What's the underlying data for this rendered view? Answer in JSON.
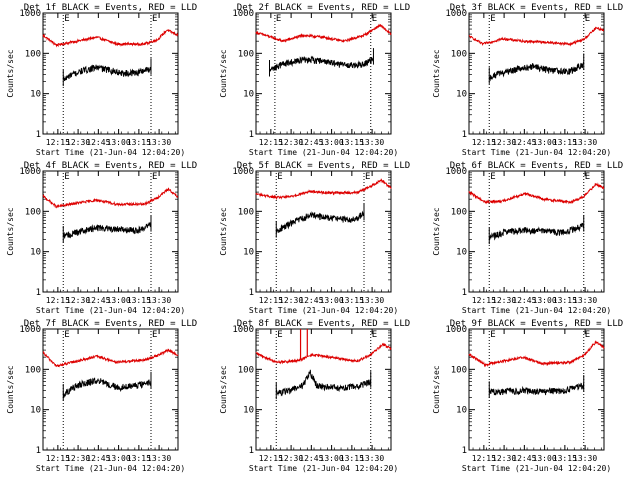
{
  "colors": {
    "events": "#000000",
    "lld": "#dd0000",
    "frame": "#000000",
    "marker": "#000000"
  },
  "chart_data": {
    "type": "line",
    "layout": "3x3 grid of small-multiple time-series panels",
    "shared": {
      "yscale": "log",
      "ylim": [
        1,
        1000
      ],
      "yticks": [
        "1",
        "10",
        "100",
        "1000"
      ],
      "ylabel": "Counts/sec",
      "xlim_minutes": [
        0,
        100
      ],
      "xtick_minutes": [
        11,
        26,
        41,
        56,
        71,
        86
      ],
      "xticks": [
        "12:15",
        "12:30",
        "12:45",
        "13:00",
        "13:15",
        "13:30"
      ],
      "xlabel": "Start Time (21-Jun-04 12:04:20)",
      "marker_label": "E",
      "legend": "BLACK = Events, RED = LLD"
    },
    "panels": [
      {
        "title": "Det 1f BLACK = Events, RED = LLD",
        "markers": [
          15,
          80
        ],
        "data_range": [
          15,
          80
        ],
        "events_keys": [
          [
            15,
            22
          ],
          [
            20,
            28
          ],
          [
            30,
            38
          ],
          [
            40,
            45
          ],
          [
            50,
            38
          ],
          [
            60,
            32
          ],
          [
            70,
            34
          ],
          [
            80,
            42
          ]
        ],
        "lld_keys": [
          [
            0,
            280
          ],
          [
            10,
            160
          ],
          [
            25,
            200
          ],
          [
            40,
            250
          ],
          [
            55,
            170
          ],
          [
            75,
            170
          ],
          [
            85,
            220
          ],
          [
            92,
            380
          ],
          [
            100,
            280
          ]
        ]
      },
      {
        "title": "Det 2f BLACK = Events, RED = LLD",
        "markers": [
          14,
          85
        ],
        "data_range": [
          10,
          87
        ],
        "events_keys": [
          [
            10,
            38
          ],
          [
            20,
            55
          ],
          [
            35,
            70
          ],
          [
            50,
            65
          ],
          [
            60,
            55
          ],
          [
            70,
            50
          ],
          [
            80,
            55
          ],
          [
            87,
            75
          ]
        ],
        "lld_keys": [
          [
            0,
            330
          ],
          [
            10,
            260
          ],
          [
            20,
            200
          ],
          [
            35,
            280
          ],
          [
            50,
            250
          ],
          [
            65,
            200
          ],
          [
            80,
            280
          ],
          [
            92,
            500
          ],
          [
            100,
            300
          ]
        ]
      },
      {
        "title": "Det 3f BLACK = Events, RED = LLD",
        "markers": [
          15,
          85
        ],
        "data_range": [
          15,
          85
        ],
        "events_keys": [
          [
            15,
            25
          ],
          [
            22,
            32
          ],
          [
            35,
            40
          ],
          [
            48,
            48
          ],
          [
            60,
            38
          ],
          [
            75,
            36
          ],
          [
            85,
            55
          ]
        ],
        "lld_keys": [
          [
            0,
            270
          ],
          [
            10,
            170
          ],
          [
            25,
            230
          ],
          [
            40,
            200
          ],
          [
            55,
            190
          ],
          [
            75,
            170
          ],
          [
            85,
            220
          ],
          [
            94,
            420
          ],
          [
            100,
            380
          ]
        ]
      },
      {
        "title": "Det 4f BLACK = Events, RED = LLD",
        "markers": [
          15,
          80
        ],
        "data_range": [
          15,
          80
        ],
        "events_keys": [
          [
            15,
            24
          ],
          [
            25,
            30
          ],
          [
            40,
            40
          ],
          [
            55,
            36
          ],
          [
            70,
            34
          ],
          [
            80,
            45
          ]
        ],
        "lld_keys": [
          [
            0,
            240
          ],
          [
            10,
            130
          ],
          [
            25,
            160
          ],
          [
            40,
            190
          ],
          [
            55,
            150
          ],
          [
            75,
            150
          ],
          [
            85,
            220
          ],
          [
            93,
            360
          ],
          [
            100,
            220
          ]
        ]
      },
      {
        "title": "Det 5f BLACK = Events, RED = LLD",
        "markers": [
          15,
          80
        ],
        "data_range": [
          15,
          80
        ],
        "events_keys": [
          [
            15,
            32
          ],
          [
            25,
            50
          ],
          [
            40,
            80
          ],
          [
            55,
            70
          ],
          [
            70,
            60
          ],
          [
            80,
            85
          ]
        ],
        "lld_keys": [
          [
            0,
            270
          ],
          [
            15,
            220
          ],
          [
            25,
            230
          ],
          [
            40,
            310
          ],
          [
            55,
            290
          ],
          [
            75,
            290
          ],
          [
            85,
            420
          ],
          [
            93,
            600
          ],
          [
            100,
            380
          ]
        ]
      },
      {
        "title": "Det 6f BLACK = Events, RED = LLD",
        "markers": [
          15,
          85
        ],
        "data_range": [
          15,
          85
        ],
        "events_keys": [
          [
            15,
            22
          ],
          [
            25,
            30
          ],
          [
            40,
            34
          ],
          [
            55,
            32
          ],
          [
            70,
            30
          ],
          [
            85,
            45
          ]
        ],
        "lld_keys": [
          [
            0,
            300
          ],
          [
            12,
            170
          ],
          [
            25,
            180
          ],
          [
            42,
            280
          ],
          [
            55,
            200
          ],
          [
            75,
            170
          ],
          [
            85,
            230
          ],
          [
            94,
            480
          ],
          [
            100,
            380
          ]
        ]
      },
      {
        "title": "Det 7f BLACK = Events, RED = LLD",
        "markers": [
          15,
          80
        ],
        "data_range": [
          15,
          80
        ],
        "events_keys": [
          [
            15,
            24
          ],
          [
            25,
            40
          ],
          [
            40,
            55
          ],
          [
            55,
            36
          ],
          [
            70,
            40
          ],
          [
            80,
            48
          ]
        ],
        "lld_keys": [
          [
            0,
            260
          ],
          [
            10,
            120
          ],
          [
            25,
            160
          ],
          [
            40,
            210
          ],
          [
            55,
            150
          ],
          [
            75,
            170
          ],
          [
            85,
            220
          ],
          [
            93,
            300
          ],
          [
            100,
            220
          ]
        ]
      },
      {
        "title": "Det 8f BLACK = Events, RED = LLD",
        "markers": [
          15,
          85
        ],
        "data_range": [
          15,
          85
        ],
        "events_keys": [
          [
            15,
            26
          ],
          [
            25,
            30
          ],
          [
            35,
            42
          ],
          [
            40,
            85
          ],
          [
            45,
            40
          ],
          [
            60,
            35
          ],
          [
            75,
            38
          ],
          [
            85,
            50
          ]
        ],
        "lld_keys": [
          [
            0,
            250
          ],
          [
            15,
            150
          ],
          [
            30,
            160
          ],
          [
            42,
            230
          ],
          [
            55,
            200
          ],
          [
            75,
            160
          ],
          [
            85,
            230
          ],
          [
            94,
            420
          ],
          [
            100,
            320
          ]
        ],
        "lld_spikes": [
          [
            33,
            1000
          ],
          [
            38,
            1000
          ]
        ]
      },
      {
        "title": "Det 9f BLACK = Events, RED = LLD",
        "markers": [
          15,
          85
        ],
        "data_range": [
          15,
          85
        ],
        "events_keys": [
          [
            15,
            28
          ],
          [
            25,
            28
          ],
          [
            40,
            30
          ],
          [
            55,
            28
          ],
          [
            70,
            30
          ],
          [
            85,
            40
          ]
        ],
        "lld_keys": [
          [
            0,
            240
          ],
          [
            12,
            130
          ],
          [
            25,
            160
          ],
          [
            40,
            200
          ],
          [
            55,
            140
          ],
          [
            75,
            150
          ],
          [
            85,
            220
          ],
          [
            94,
            480
          ],
          [
            100,
            350
          ]
        ]
      }
    ]
  }
}
